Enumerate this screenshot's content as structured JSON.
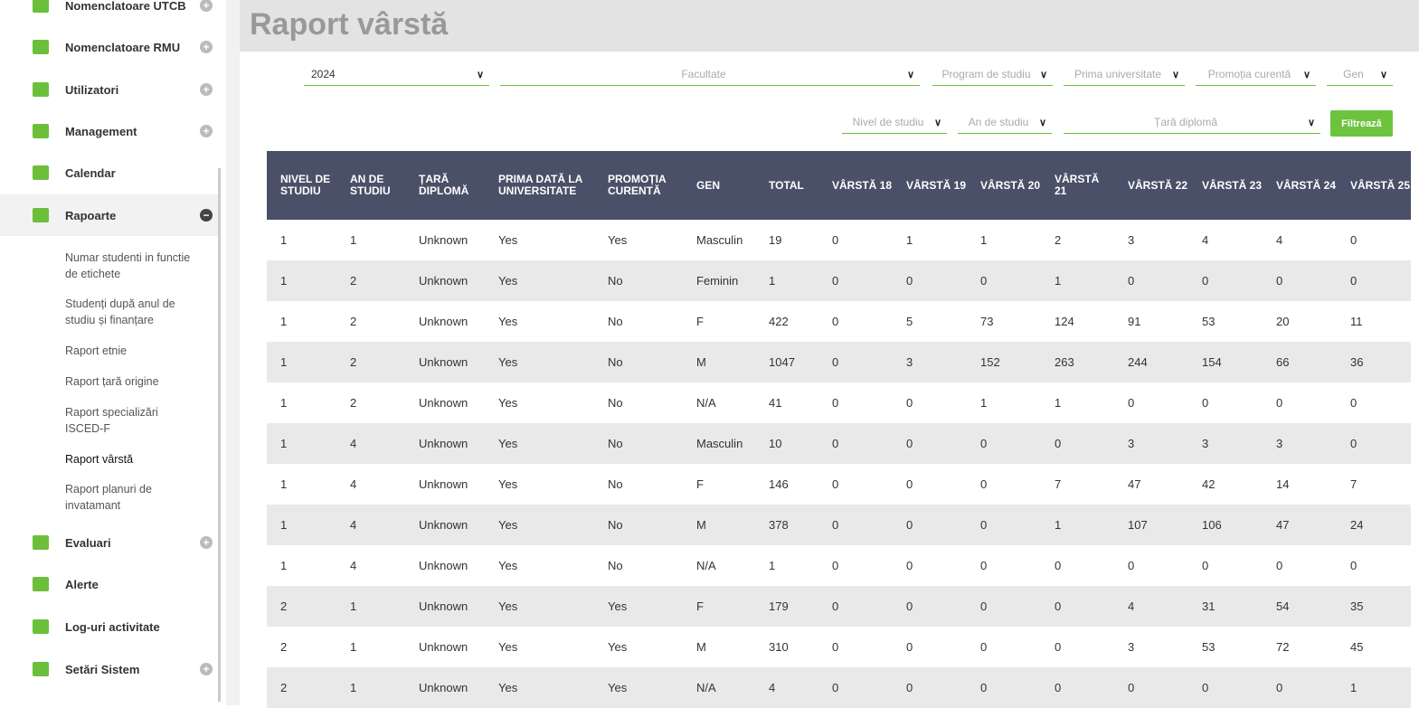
{
  "sidebar": {
    "menu": [
      {
        "label": "Nomenclatoare UTCB",
        "expandable": true
      },
      {
        "label": "Nomenclatoare RMU",
        "expandable": true
      },
      {
        "label": "Utilizatori",
        "expandable": true
      },
      {
        "label": "Management",
        "expandable": true
      },
      {
        "label": "Calendar",
        "expandable": false
      },
      {
        "label": "Rapoarte",
        "expandable": true,
        "open": true,
        "submenu": [
          "Numar studenti in functie de etichete",
          "Studenți după anul de studiu și finanțare",
          "Raport etnie",
          "Raport țară origine",
          "Raport specializări ISCED-F",
          "Raport vârstă",
          "Raport planuri de invatamant"
        ],
        "active_sub": 5
      },
      {
        "label": "Evaluari",
        "expandable": true
      },
      {
        "label": "Alerte",
        "expandable": false
      },
      {
        "label": "Log-uri activitate",
        "expandable": false
      },
      {
        "label": "Setări Sistem",
        "expandable": true
      }
    ]
  },
  "header": {
    "title": "Raport vârstă"
  },
  "filters": {
    "row1": [
      "2024",
      "Facultate",
      "Program de studiu",
      "Prima universitate",
      "Promoția curentă",
      "Gen"
    ],
    "row2": [
      "Nivel de studiu",
      "An de studiu",
      "Țară diplomă"
    ],
    "button": "Filtrează"
  },
  "table": {
    "columns": [
      "NIVEL DE STUDIU",
      "AN DE STUDIU",
      "ȚARĂ DIPLOMĂ",
      "PRIMA DATĂ LA UNIVERSITATE",
      "PROMOȚIA CURENTĂ",
      "GEN",
      "TOTAL",
      "VÂRSTĂ 18",
      "VÂRSTĂ 19",
      "VÂRSTĂ 20",
      "VÂRSTĂ 21",
      "VÂRSTĂ 22",
      "VÂRSTĂ 23",
      "VÂRSTĂ 24",
      "VÂRSTĂ 25"
    ],
    "rows": [
      [
        1,
        1,
        "Unknown",
        "Yes",
        "Yes",
        "Masculin",
        19,
        0,
        1,
        1,
        2,
        3,
        4,
        4,
        0
      ],
      [
        1,
        2,
        "Unknown",
        "Yes",
        "No",
        "Feminin",
        1,
        0,
        0,
        0,
        1,
        0,
        0,
        0,
        0
      ],
      [
        1,
        2,
        "Unknown",
        "Yes",
        "No",
        "F",
        422,
        0,
        5,
        73,
        124,
        91,
        53,
        20,
        11
      ],
      [
        1,
        2,
        "Unknown",
        "Yes",
        "No",
        "M",
        1047,
        0,
        3,
        152,
        263,
        244,
        154,
        66,
        36
      ],
      [
        1,
        2,
        "Unknown",
        "Yes",
        "No",
        "N/A",
        41,
        0,
        0,
        1,
        1,
        0,
        0,
        0,
        0
      ],
      [
        1,
        4,
        "Unknown",
        "Yes",
        "No",
        "Masculin",
        10,
        0,
        0,
        0,
        0,
        3,
        3,
        3,
        0
      ],
      [
        1,
        4,
        "Unknown",
        "Yes",
        "No",
        "F",
        146,
        0,
        0,
        0,
        7,
        47,
        42,
        14,
        7
      ],
      [
        1,
        4,
        "Unknown",
        "Yes",
        "No",
        "M",
        378,
        0,
        0,
        0,
        1,
        107,
        106,
        47,
        24
      ],
      [
        1,
        4,
        "Unknown",
        "Yes",
        "No",
        "N/A",
        1,
        0,
        0,
        0,
        0,
        0,
        0,
        0,
        0
      ],
      [
        2,
        1,
        "Unknown",
        "Yes",
        "Yes",
        "F",
        179,
        0,
        0,
        0,
        0,
        4,
        31,
        54,
        35
      ],
      [
        2,
        1,
        "Unknown",
        "Yes",
        "Yes",
        "M",
        310,
        0,
        0,
        0,
        0,
        3,
        53,
        72,
        45
      ],
      [
        2,
        1,
        "Unknown",
        "Yes",
        "Yes",
        "N/A",
        4,
        0,
        0,
        0,
        0,
        0,
        0,
        0,
        1
      ]
    ]
  }
}
